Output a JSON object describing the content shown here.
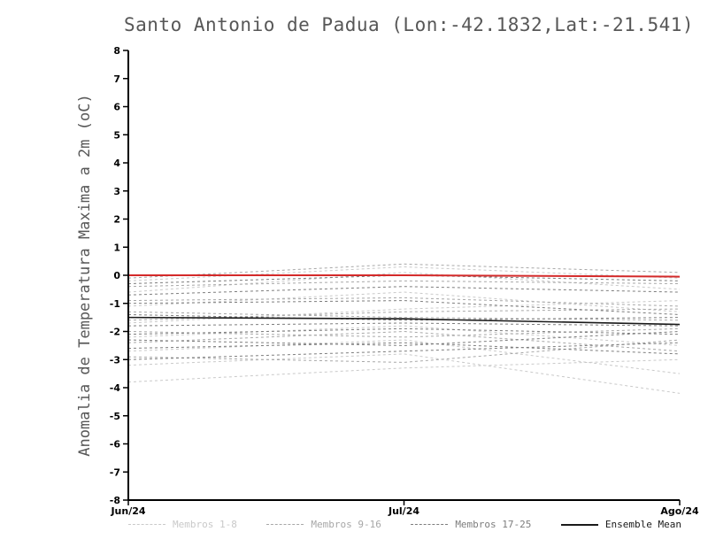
{
  "title": "Santo Antonio de Padua (Lon:-42.1832,Lat:-21.541)",
  "ylabel": "Anomalia de Temperatura Maxima a 2m (oC)",
  "legend": [
    {
      "label": "Membros 1-8",
      "group": "membros_1_8"
    },
    {
      "label": "Membros 9-16",
      "group": "membros_9_16"
    },
    {
      "label": "Membros 17-25",
      "group": "membros_17_25"
    },
    {
      "label": "Ensemble Mean",
      "group": "ensemble_mean"
    }
  ],
  "chart_data": {
    "type": "line",
    "x": [
      "Jun/24",
      "Jul/24",
      "Ago/24"
    ],
    "ylim": [
      -8,
      8
    ],
    "y_ticks": [
      8,
      7,
      6,
      5,
      4,
      3,
      2,
      1,
      0,
      -1,
      -2,
      -3,
      -4,
      -5,
      -6,
      -7,
      -8
    ],
    "grid": false,
    "legend_position": "bottom",
    "groups": {
      "membros_1_8": {
        "color": "#c9c9c9",
        "dash": "3,3",
        "width": 1
      },
      "membros_9_16": {
        "color": "#a7a7a7",
        "dash": "3,3",
        "width": 1
      },
      "membros_17_25": {
        "color": "#7d7d7d",
        "dash": "3,3",
        "width": 1
      },
      "ensemble_mean": {
        "color": "#1a1a1a",
        "dash": "",
        "width": 1.6
      },
      "reference": {
        "color": "#d42a2a",
        "dash": "",
        "width": 2
      }
    },
    "series": [
      {
        "name": "m1",
        "group": "membros_1_8",
        "values": [
          -0.2,
          0.3,
          -0.1
        ]
      },
      {
        "name": "m2",
        "group": "membros_1_8",
        "values": [
          -0.6,
          0.1,
          -0.5
        ]
      },
      {
        "name": "m3",
        "group": "membros_1_8",
        "values": [
          -1.1,
          -0.6,
          -1.3
        ]
      },
      {
        "name": "m4",
        "group": "membros_1_8",
        "values": [
          -1.7,
          -1.2,
          -0.9
        ]
      },
      {
        "name": "m5",
        "group": "membros_1_8",
        "values": [
          -2.2,
          -1.8,
          -2.5
        ]
      },
      {
        "name": "m6",
        "group": "membros_1_8",
        "values": [
          -2.7,
          -2.3,
          -3.5
        ]
      },
      {
        "name": "m7",
        "group": "membros_1_8",
        "values": [
          -3.2,
          -2.8,
          -4.2
        ]
      },
      {
        "name": "m8",
        "group": "membros_1_8",
        "values": [
          -3.8,
          -3.3,
          -3.0
        ]
      },
      {
        "name": "m9",
        "group": "membros_9_16",
        "values": [
          -0.1,
          0.4,
          0.1
        ]
      },
      {
        "name": "m10",
        "group": "membros_9_16",
        "values": [
          -0.4,
          -0.2,
          -0.3
        ]
      },
      {
        "name": "m11",
        "group": "membros_9_16",
        "values": [
          -0.9,
          -0.8,
          -1.1
        ]
      },
      {
        "name": "m12",
        "group": "membros_9_16",
        "values": [
          -1.3,
          -1.5,
          -1.6
        ]
      },
      {
        "name": "m13",
        "group": "membros_9_16",
        "values": [
          -1.6,
          -1.3,
          -1.2
        ]
      },
      {
        "name": "m14",
        "group": "membros_9_16",
        "values": [
          -2.0,
          -2.2,
          -1.9
        ]
      },
      {
        "name": "m15",
        "group": "membros_9_16",
        "values": [
          -2.4,
          -2.0,
          -2.7
        ]
      },
      {
        "name": "m16",
        "group": "membros_9_16",
        "values": [
          -2.9,
          -3.1,
          -2.3
        ]
      },
      {
        "name": "m17",
        "group": "membros_17_25",
        "values": [
          -0.3,
          0.0,
          -0.2
        ]
      },
      {
        "name": "m18",
        "group": "membros_17_25",
        "values": [
          -0.7,
          -0.4,
          -0.6
        ]
      },
      {
        "name": "m19",
        "group": "membros_17_25",
        "values": [
          -1.0,
          -0.9,
          -1.4
        ]
      },
      {
        "name": "m20",
        "group": "membros_17_25",
        "values": [
          -1.4,
          -1.6,
          -1.5
        ]
      },
      {
        "name": "m21",
        "group": "membros_17_25",
        "values": [
          -1.8,
          -1.7,
          -1.8
        ]
      },
      {
        "name": "m22",
        "group": "membros_17_25",
        "values": [
          -2.1,
          -1.9,
          -2.1
        ]
      },
      {
        "name": "m23",
        "group": "membros_17_25",
        "values": [
          -2.3,
          -2.5,
          -2.0
        ]
      },
      {
        "name": "m24",
        "group": "membros_17_25",
        "values": [
          -2.6,
          -2.4,
          -2.8
        ]
      },
      {
        "name": "m25",
        "group": "membros_17_25",
        "values": [
          -3.0,
          -2.7,
          -2.4
        ]
      },
      {
        "name": "reference_zero_line",
        "group": "reference",
        "values": [
          0.0,
          0.0,
          -0.05
        ]
      },
      {
        "name": "ensemble_mean",
        "group": "ensemble_mean",
        "values": [
          -1.5,
          -1.55,
          -1.75
        ]
      }
    ]
  }
}
